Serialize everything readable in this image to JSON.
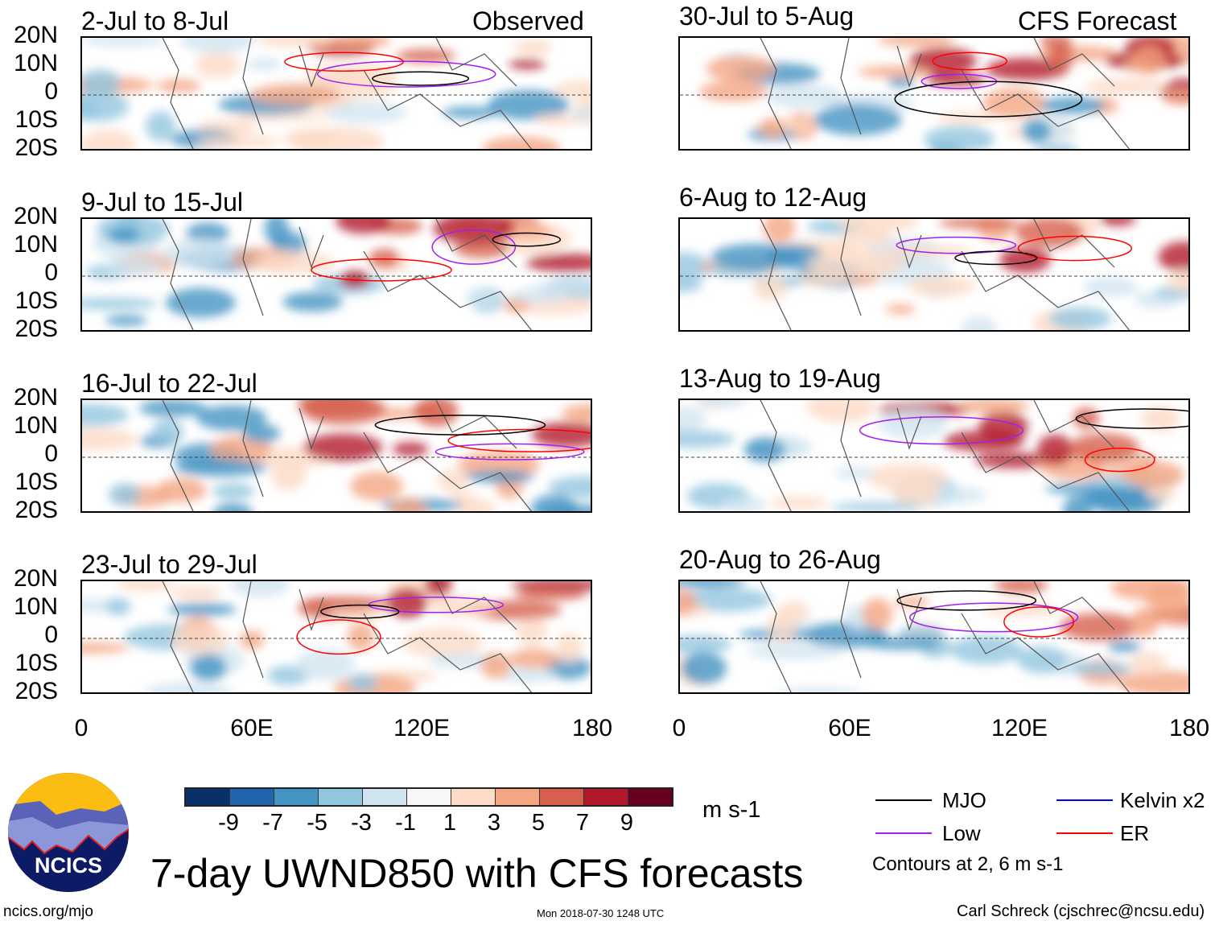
{
  "panels": {
    "left": [
      {
        "title": "2-Jul to 8-Jul",
        "label": "Observed"
      },
      {
        "title": "9-Jul to 15-Jul"
      },
      {
        "title": "16-Jul to 22-Jul"
      },
      {
        "title": "23-Jul to 29-Jul"
      }
    ],
    "right": [
      {
        "title": "30-Jul to 5-Aug",
        "label": "CFS Forecast"
      },
      {
        "title": "6-Aug to 12-Aug"
      },
      {
        "title": "13-Aug to 19-Aug"
      },
      {
        "title": "20-Aug to 26-Aug"
      }
    ]
  },
  "lat_labels": [
    "20N",
    "10N",
    "0",
    "10S",
    "20S"
  ],
  "lon_labels": [
    "0",
    "60E",
    "120E",
    "180"
  ],
  "colorbar": {
    "labels": [
      "-9",
      "-7",
      "-5",
      "-3",
      "-1",
      "1",
      "3",
      "5",
      "7",
      "9"
    ],
    "colors": [
      "#0a3068",
      "#2166ac",
      "#4393c3",
      "#92c5de",
      "#d1e5f0",
      "#f7f7f7",
      "#fddbc7",
      "#f4a582",
      "#d6604d",
      "#b2182b",
      "#67001f"
    ],
    "units": "m s-1"
  },
  "legend": {
    "items": [
      {
        "label": "MJO",
        "color": "#000000"
      },
      {
        "label": "Kelvin x2",
        "color": "#0000ff"
      },
      {
        "label": "Low",
        "color": "#a020f0"
      },
      {
        "label": "ER",
        "color": "#ff0000"
      }
    ],
    "note": "Contours at 2, 6 m s-1"
  },
  "title": "7-day UWND850 with CFS forecasts",
  "logo": "NCICS",
  "url": "ncics.org/mjo",
  "timestamp": "Mon 2018-07-30 1248 UTC",
  "author": "Carl Schreck (cjschrec@ncsu.edu)"
}
